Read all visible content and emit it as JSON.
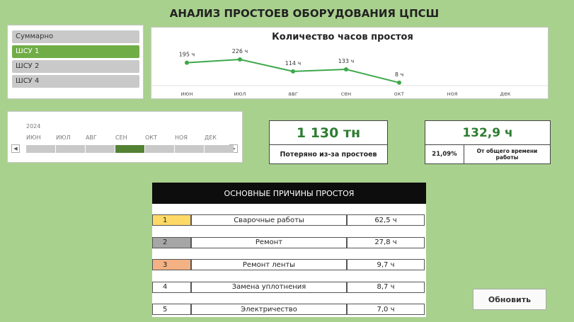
{
  "title": "АНАЛИЗ ПРОСТОЕВ ОБОРУДОВАНИЯ ЦПСШ",
  "slicer": {
    "items": [
      "Суммарно",
      "ШСУ 1",
      "ШСУ 2",
      "ШСУ 4"
    ],
    "selected": 1
  },
  "timeline": {
    "year": "2024",
    "months": [
      "ИЮН",
      "ИЮЛ",
      "АВГ",
      "СЕН",
      "ОКТ",
      "НОЯ",
      "ДЕК"
    ],
    "selected": 3
  },
  "chart_data": {
    "type": "line",
    "title": "Количество часов простоя",
    "categories": [
      "июн",
      "июл",
      "авг",
      "сен",
      "окт",
      "ноя",
      "дек"
    ],
    "series": [
      {
        "color": "#3da84a",
        "values": [
          195,
          226,
          114,
          133,
          8,
          null,
          null
        ],
        "value_labels": [
          "195 ч",
          "226 ч",
          "114 ч",
          "133 ч",
          "8 ч",
          null,
          null
        ]
      }
    ]
  },
  "kpis": [
    {
      "value": "1 130 тн",
      "caption": "Потеряно из-за простоев"
    },
    {
      "value": "132,9 ч",
      "share": "21,09%",
      "caption": "От общего времени работы"
    }
  ],
  "reasons": {
    "header": "ОСНОВНЫЕ ПРИЧИНЫ ПРОСТОЯ",
    "rows": [
      [
        "1",
        "Сварочные работы",
        "62,5 ч"
      ],
      [
        "2",
        "Ремонт",
        "27,8 ч"
      ],
      [
        "3",
        "Ремонт ленты",
        "9,7 ч"
      ],
      [
        "4",
        "Замена уплотнения",
        "8,7 ч"
      ],
      [
        "5",
        "Электричество",
        "7,0 ч"
      ]
    ]
  },
  "button": "Обновить"
}
